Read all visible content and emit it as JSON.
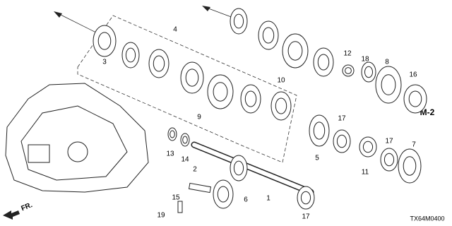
{
  "callouts": [
    "4",
    "3",
    "9",
    "10",
    "12",
    "18",
    "8",
    "16",
    "17",
    "5",
    "11",
    "17",
    "7",
    "13",
    "14",
    "2",
    "15",
    "19",
    "6",
    "1",
    "17"
  ],
  "section_code": "M-2",
  "direction_label": "FR.",
  "diagram_code": "TX64M0400"
}
